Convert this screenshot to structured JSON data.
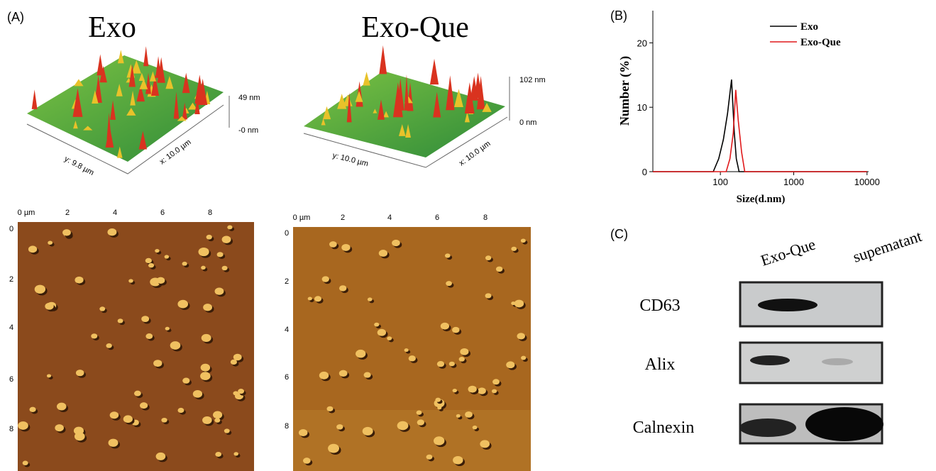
{
  "panel_a": {
    "label": "(A)",
    "exo": {
      "title": "Exo",
      "z_max": "49 nm",
      "z_min": "-0 nm",
      "y_size": "y: 9.8 µm",
      "x_size": "x: 10.0 µm",
      "x_ticks": [
        "0 µm",
        "2",
        "4",
        "6",
        "8"
      ],
      "y_ticks": [
        "0",
        "2",
        "4",
        "6",
        "8"
      ]
    },
    "exo_que": {
      "title": "Exo-Que",
      "z_max": "102 nm",
      "z_min": "0 nm",
      "y_size": "y: 10.0 µm",
      "x_size": "x: 10.0 µm",
      "x_ticks": [
        "0 µm",
        "2",
        "4",
        "6",
        "8"
      ],
      "y_ticks": [
        "0",
        "2",
        "4",
        "6",
        "8"
      ]
    }
  },
  "panel_b_label": "(B)",
  "chart_data": {
    "type": "line",
    "x_label": "Size(d.nm)",
    "y_label": "Number (%)",
    "xscale": "log",
    "xlim": [
      12,
      10500
    ],
    "xticks": [
      100,
      1000,
      10000
    ],
    "ylim": [
      0,
      25
    ],
    "yticks": [
      0,
      10,
      20
    ],
    "legend": "upper right",
    "series": [
      {
        "name": "Exo",
        "color": "#000000",
        "x": [
          12,
          80,
          95,
          110,
          125,
          142,
          155,
          165,
          180,
          10000
        ],
        "values": [
          0,
          0,
          2,
          5,
          9,
          14.3,
          6,
          2,
          0,
          0
        ]
      },
      {
        "name": "Exo-Que",
        "color": "#e0191b",
        "x": [
          12,
          120,
          135,
          150,
          162,
          175,
          195,
          215,
          10000
        ],
        "values": [
          0,
          0,
          2,
          6,
          12.7,
          8,
          3,
          0,
          0
        ]
      }
    ]
  },
  "panel_c": {
    "label": "(C)",
    "lanes": [
      "Exo-Que",
      "supematant"
    ],
    "rows": [
      "CD63",
      "Alix",
      "Calnexin"
    ]
  }
}
